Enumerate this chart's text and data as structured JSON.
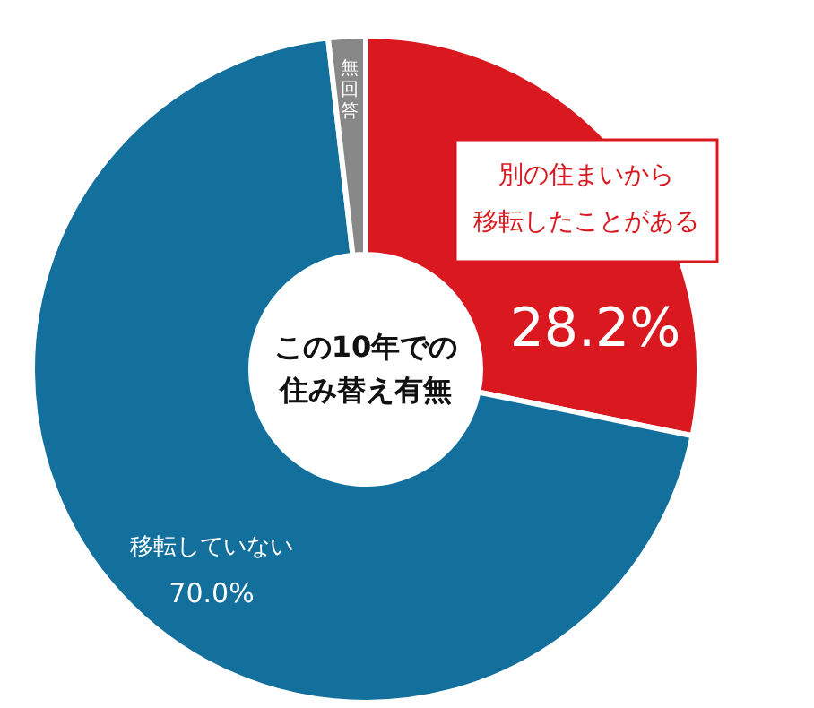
{
  "chart_data": {
    "type": "donut",
    "title": "この10年での住み替え有無",
    "categories": [
      "別の住まいから移転したことがある",
      "移転していない",
      "無回答"
    ],
    "values": [
      28.2,
      70.0,
      1.8
    ],
    "value_labels": [
      "28.2%",
      "70.0%",
      null
    ],
    "colors": [
      "#d9181f",
      "#13709c",
      "#888888"
    ]
  }
}
